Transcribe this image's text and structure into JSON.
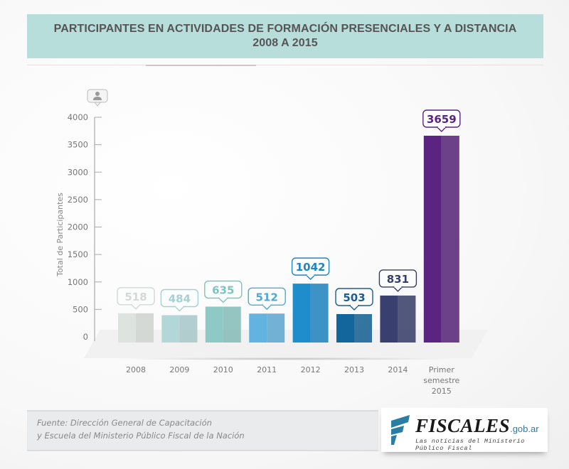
{
  "header": {
    "title_line1": "PARTICIPANTES EN ACTIVIDADES DE FORMACIÓN PRESENCIALES Y A DISTANCIA",
    "title_line2": "2008 A 2015"
  },
  "chart_data": {
    "type": "bar",
    "title": "PARTICIPANTES EN ACTIVIDADES DE FORMACIÓN PRESENCIALES Y A DISTANCIA 2008 A 2015",
    "xlabel": "",
    "ylabel": "Total de Participantes",
    "ylim": [
      0,
      4000
    ],
    "yticks": [
      0,
      500,
      1000,
      1500,
      2000,
      2500,
      3000,
      3500,
      4000
    ],
    "grid": false,
    "y_axis_icon": "person-icon",
    "categories": [
      "2008",
      "2009",
      "2010",
      "2011",
      "2012",
      "2013",
      "2014",
      "Primer semestre 2015"
    ],
    "category_lines": [
      [
        "2008"
      ],
      [
        "2009"
      ],
      [
        "2010"
      ],
      [
        "2011"
      ],
      [
        "2012"
      ],
      [
        "2013"
      ],
      [
        "2014"
      ],
      [
        "Primer",
        "semestre",
        "2015"
      ]
    ],
    "values": [
      518,
      484,
      635,
      512,
      1042,
      503,
      831,
      3659
    ],
    "colors": [
      "#dde4df",
      "#b3d6d8",
      "#8ecac5",
      "#63b3e0",
      "#1f8ccb",
      "#12669c",
      "#39406f",
      "#5b2480"
    ],
    "label_colors": [
      "#d3d9d6",
      "#a8cfd2",
      "#7ec3be",
      "#4fa8da",
      "#1f86c6",
      "#1b5e92",
      "#363d6a",
      "#5a2580"
    ]
  },
  "footer": {
    "source_line1": "Fuente: Dirección General de Capacitación",
    "source_line2": "y Escuela del Ministerio Público Fiscal de la Nación"
  },
  "logo": {
    "brand": "FISCALES",
    "domain": ".gob.ar",
    "tagline": "Las noticias del Ministerio Público Fiscal",
    "accent": "#2a7ea3"
  }
}
